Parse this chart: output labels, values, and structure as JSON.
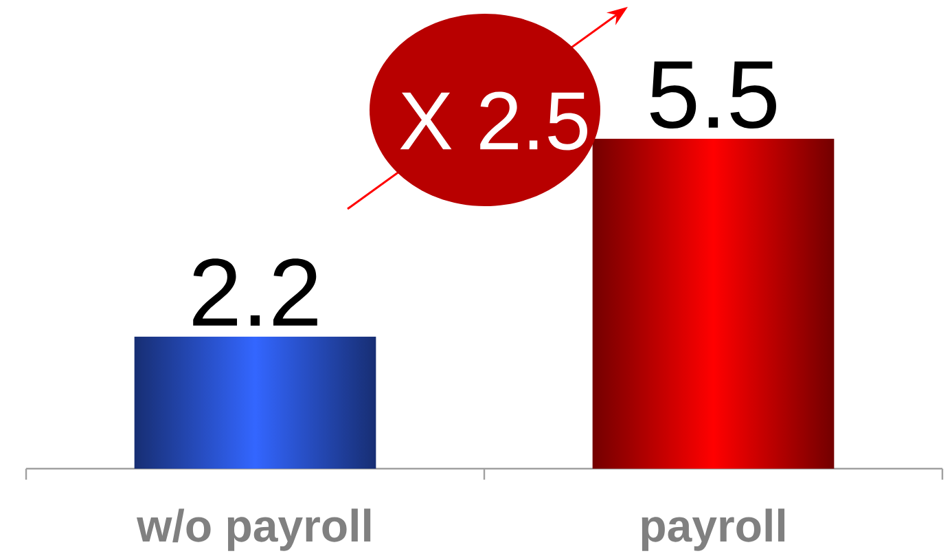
{
  "chart_data": {
    "type": "bar",
    "categories": [
      "w/o payroll",
      "payroll"
    ],
    "values": [
      2.2,
      5.5
    ],
    "colors": [
      "#3366ff",
      "#ff0000"
    ],
    "data_labels": true,
    "annotations": [
      "X 2.5"
    ]
  }
}
